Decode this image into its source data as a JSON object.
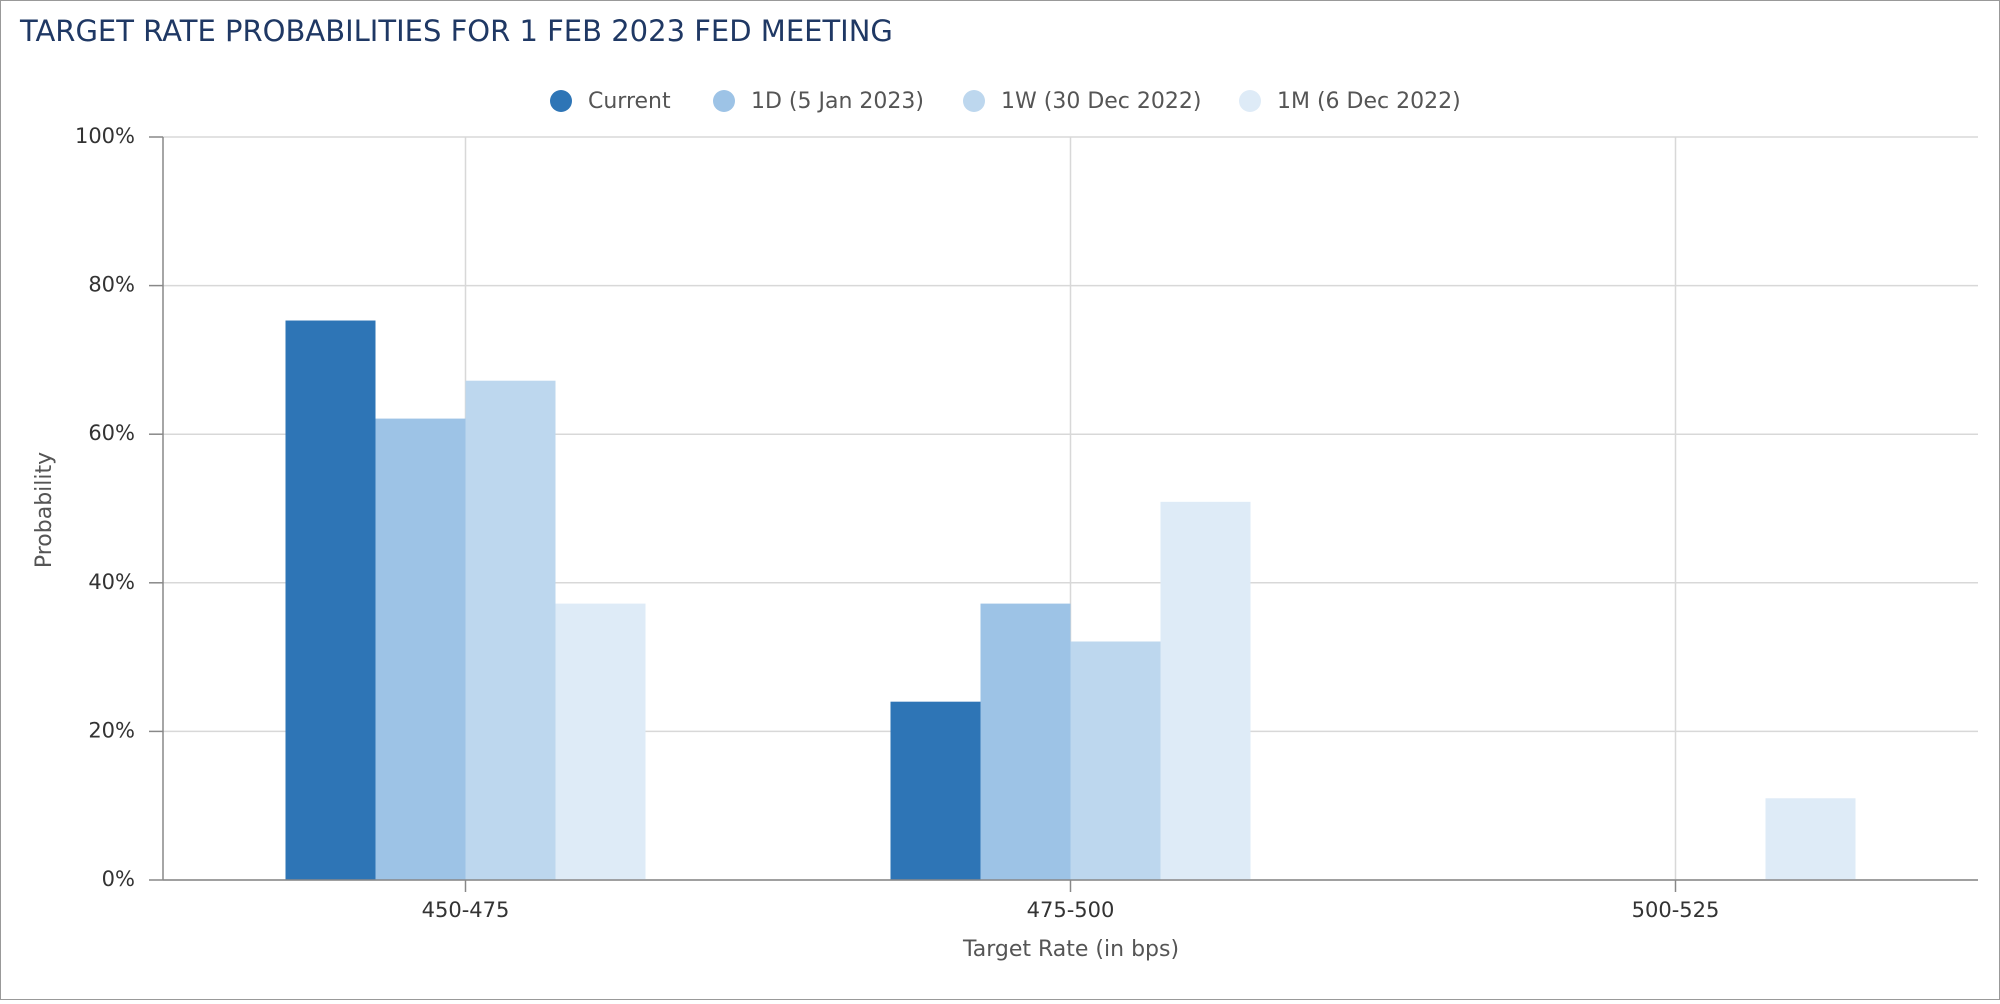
{
  "chart_data": {
    "type": "bar",
    "title": "TARGET RATE PROBABILITIES FOR 1 FEB 2023 FED MEETING",
    "x_label": "Target Rate (in bps)",
    "y_label": "Probability",
    "categories": [
      "450-475",
      "475-500",
      "500-525"
    ],
    "series": [
      {
        "name": "Current",
        "color": "#2e75b6",
        "values": [
          75.3,
          24.0,
          0
        ]
      },
      {
        "name": "1D (5 Jan 2023)",
        "color": "#9dc3e6",
        "values": [
          62.1,
          37.2,
          0
        ]
      },
      {
        "name": "1W (30 Dec 2022)",
        "color": "#bdd7ee",
        "values": [
          67.2,
          32.1,
          0
        ]
      },
      {
        "name": "1M (6 Dec 2022)",
        "color": "#deebf7",
        "values": [
          37.2,
          50.9,
          11.0
        ]
      }
    ],
    "ylim": [
      0,
      100
    ],
    "yticks": [
      {
        "value": 0,
        "label": "0%"
      },
      {
        "value": 20,
        "label": "20%"
      },
      {
        "value": 40,
        "label": "40%"
      },
      {
        "value": 60,
        "label": "60%"
      },
      {
        "value": 80,
        "label": "80%"
      },
      {
        "value": 100,
        "label": "100%"
      }
    ],
    "grid": true
  }
}
